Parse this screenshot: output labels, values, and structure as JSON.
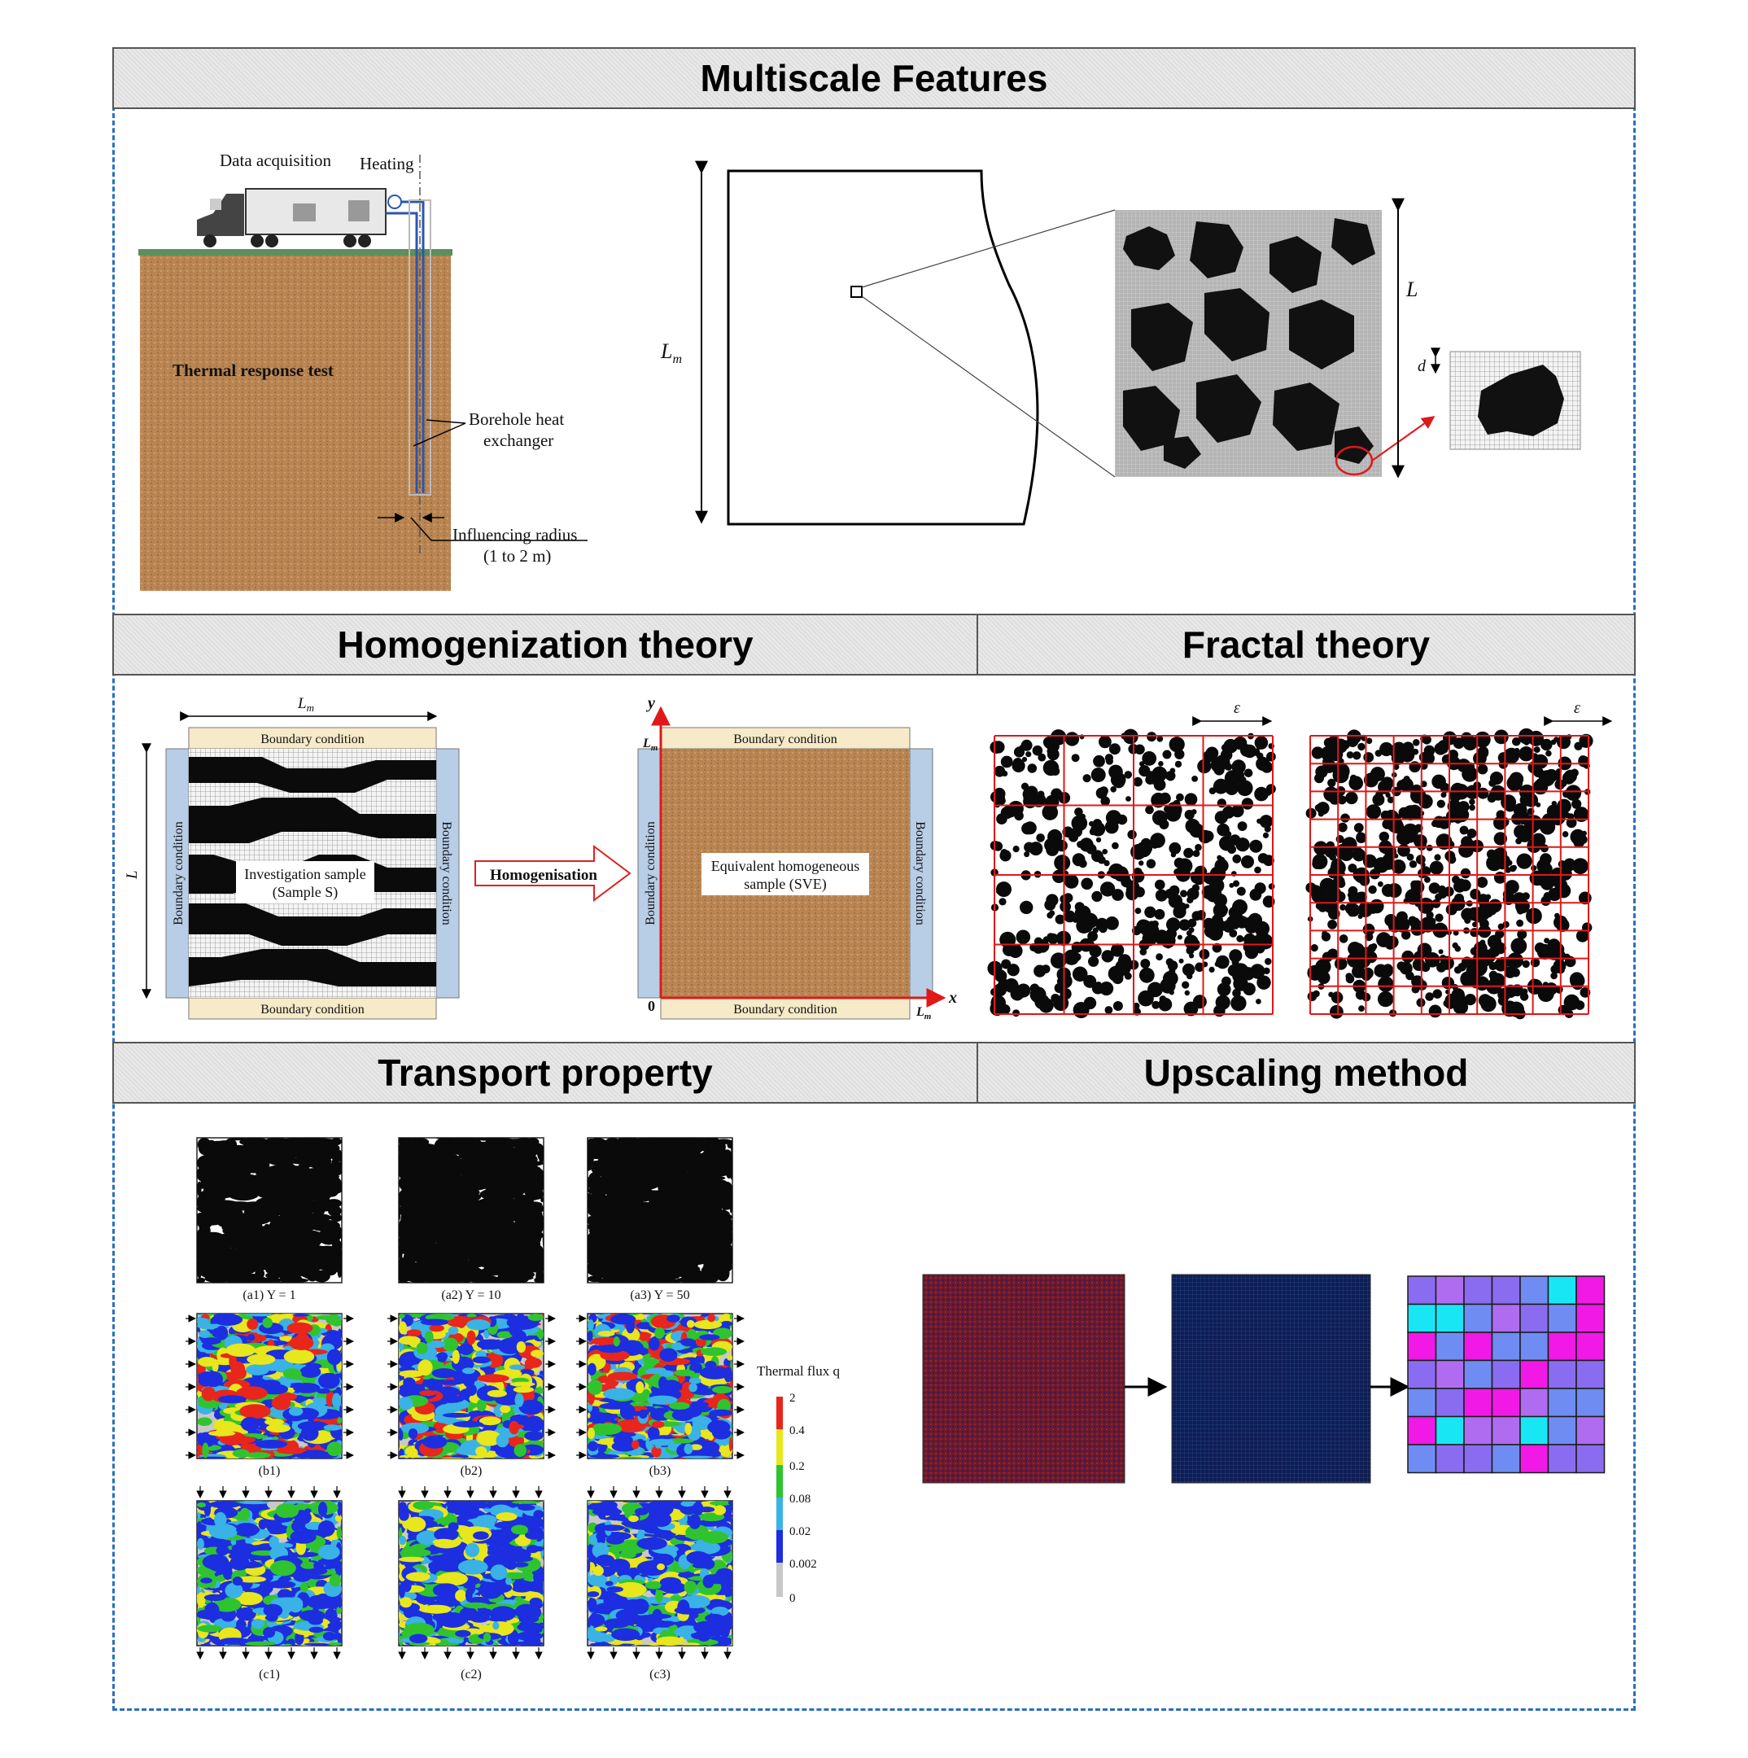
{
  "sections": {
    "multiscale": "Multiscale Features",
    "homogenization": "Homogenization theory",
    "fractal": "Fractal theory",
    "transport": "Transport property",
    "upscaling": "Upscaling method"
  },
  "trt": {
    "data_acquisition": "Data acquisition",
    "heating": "Heating",
    "title": "Thermal response test",
    "bhe_line1": "Borehole heat",
    "bhe_line2": "exchanger",
    "radius_line1": "Influencing radius",
    "radius_line2": "(1 to 2 m)"
  },
  "scales": {
    "Lm": "L",
    "Lm_sub": "m",
    "L": "L",
    "d": "d"
  },
  "homog": {
    "lm_top": "L",
    "lm_sub": "m",
    "bc": "Boundary condition",
    "sample_line1": "Investigation sample",
    "sample_line2": "(Sample S)",
    "arrow_label": "Homogenisation",
    "equiv_line1": "Equivalent homogeneous",
    "equiv_line2": "sample (SVE)",
    "axis_x": "x",
    "axis_y": "y",
    "origin": "0"
  },
  "fractal": {
    "eps": "ε"
  },
  "transport": {
    "labels_a": [
      "(a1) Y = 1",
      "(a2) Y = 10",
      "(a3) Y = 50"
    ],
    "labels_b": [
      "(b1)",
      "(b2)",
      "(b3)"
    ],
    "labels_c": [
      "(c1)",
      "(c2)",
      "(c3)"
    ],
    "legend_title": "Thermal flux q",
    "legend_ticks": [
      "2",
      "0.4",
      "0.2",
      "0.08",
      "0.02",
      "0.002",
      "0"
    ],
    "colors": {
      "red": "#e8261c",
      "yellow": "#e8e61c",
      "green": "#2fc42f",
      "cyan": "#3ab2e6",
      "blue": "#1c2ee0",
      "gray": "#c8c8c8"
    }
  },
  "upscaling": {
    "colors": {
      "dark_red": "#6b1a2a",
      "navy": "#0f1d55",
      "cyan": "#19e6f5",
      "violet": "#8a6cf0",
      "purple": "#b06cf0",
      "blue": "#6f8cf2",
      "magenta": "#f019e6"
    }
  }
}
